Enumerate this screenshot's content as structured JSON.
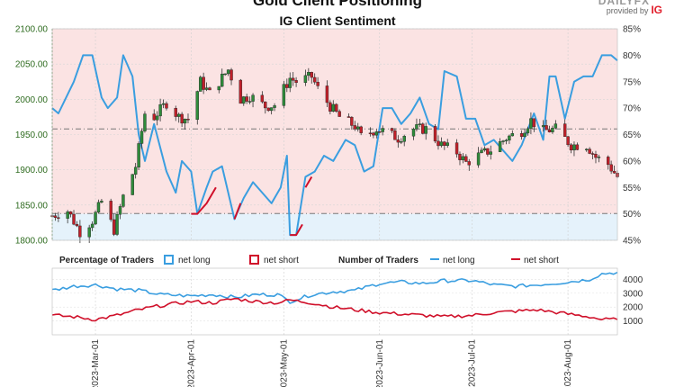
{
  "header": {
    "title": "Gold Client Positioning",
    "subtitle": "IG Client Sentiment",
    "brand_top": "DAILYFX",
    "brand_text": "provided by",
    "brand_logo": "IG"
  },
  "legend": {
    "pct_title": "Percentage of Traders",
    "pct_long": "net long",
    "pct_short": "net short",
    "num_title": "Number of Traders",
    "num_long": "net long",
    "num_short": "net short"
  },
  "colors": {
    "long": "#3a9ee0",
    "short": "#d0102a",
    "bull": "#2e8b3a",
    "bear": "#c0202a",
    "bg_short": "#fbe3e3",
    "bg_long": "#e5f2fb"
  },
  "chart_data": [
    {
      "type": "candlestick",
      "title": "IG Client Sentiment",
      "x_ticks": [
        "2023-Mar-01",
        "2023-Apr-01",
        "2023-May-01",
        "2023-Jun-01",
        "2023-Jul-01",
        "2023-Aug-01"
      ],
      "y_left_ticks": [
        "1800.00",
        "1850.00",
        "1900.00",
        "1950.00",
        "2000.00",
        "2050.00",
        "2100.00"
      ],
      "ylim_price": [
        1800,
        2100
      ],
      "y_right_ticks": [
        "45%",
        "50%",
        "55%",
        "60%",
        "65%",
        "70%",
        "75%",
        "80%",
        "85%"
      ],
      "ylim_pct": [
        45,
        85
      ],
      "ref_lines_price": [
        1838,
        1958
      ],
      "start": "2023-02-15",
      "end": "2023-08-17",
      "price_path": [
        [
          "2023-02-15",
          1835
        ],
        [
          "2023-02-20",
          1842
        ],
        [
          "2023-02-24",
          1812
        ],
        [
          "2023-02-28",
          1828
        ],
        [
          "2023-03-03",
          1855
        ],
        [
          "2023-03-07",
          1815
        ],
        [
          "2023-03-10",
          1862
        ],
        [
          "2023-03-14",
          1905
        ],
        [
          "2023-03-17",
          1980
        ],
        [
          "2023-03-20",
          1975
        ],
        [
          "2023-03-24",
          1995
        ],
        [
          "2023-03-28",
          1975
        ],
        [
          "2023-03-31",
          1972
        ],
        [
          "2023-04-04",
          2025
        ],
        [
          "2023-04-07",
          2008
        ],
        [
          "2023-04-13",
          2042
        ],
        [
          "2023-04-17",
          2000
        ],
        [
          "2023-04-20",
          2005
        ],
        [
          "2023-04-25",
          1990
        ],
        [
          "2023-04-28",
          1992
        ],
        [
          "2023-05-03",
          2030
        ],
        [
          "2023-05-05",
          2025
        ],
        [
          "2023-05-10",
          2032
        ],
        [
          "2023-05-12",
          2015
        ],
        [
          "2023-05-16",
          1990
        ],
        [
          "2023-05-19",
          1975
        ],
        [
          "2023-05-24",
          1962
        ],
        [
          "2023-05-26",
          1947
        ],
        [
          "2023-05-31",
          1958
        ],
        [
          "2023-06-02",
          1955
        ],
        [
          "2023-06-07",
          1945
        ],
        [
          "2023-06-12",
          1958
        ],
        [
          "2023-06-16",
          1958
        ],
        [
          "2023-06-21",
          1935
        ],
        [
          "2023-06-26",
          1925
        ],
        [
          "2023-06-29",
          1910
        ],
        [
          "2023-07-03",
          1920
        ],
        [
          "2023-07-07",
          1928
        ],
        [
          "2023-07-12",
          1945
        ],
        [
          "2023-07-17",
          1955
        ],
        [
          "2023-07-20",
          1970
        ],
        [
          "2023-07-24",
          1955
        ],
        [
          "2023-07-28",
          1958
        ],
        [
          "2023-08-02",
          1935
        ],
        [
          "2023-08-07",
          1935
        ],
        [
          "2023-08-10",
          1918
        ],
        [
          "2023-08-14",
          1908
        ],
        [
          "2023-08-17",
          1890
        ]
      ],
      "series": [
        {
          "name": "net long",
          "values": [
            [
              "2023-02-15",
              70
            ],
            [
              "2023-02-17",
              69
            ],
            [
              "2023-02-22",
              75
            ],
            [
              "2023-02-25",
              80
            ],
            [
              "2023-02-28",
              80
            ],
            [
              "2023-03-03",
              72
            ],
            [
              "2023-03-05",
              70
            ],
            [
              "2023-03-08",
              72
            ],
            [
              "2023-03-10",
              80
            ],
            [
              "2023-03-13",
              76
            ],
            [
              "2023-03-15",
              65
            ],
            [
              "2023-03-17",
              60
            ],
            [
              "2023-03-20",
              67
            ],
            [
              "2023-03-24",
              58
            ],
            [
              "2023-03-27",
              54
            ],
            [
              "2023-03-29",
              60
            ],
            [
              "2023-04-01",
              58
            ],
            [
              "2023-04-03",
              50
            ],
            [
              "2023-04-06",
              55
            ],
            [
              "2023-04-08",
              58
            ],
            [
              "2023-04-11",
              59
            ],
            [
              "2023-04-13",
              54
            ],
            [
              "2023-04-15",
              49
            ],
            [
              "2023-04-18",
              53
            ],
            [
              "2023-04-21",
              56
            ],
            [
              "2023-04-24",
              54
            ],
            [
              "2023-04-27",
              52
            ],
            [
              "2023-04-30",
              55
            ],
            [
              "2023-05-02",
              61
            ],
            [
              "2023-05-03",
              46
            ],
            [
              "2023-05-05",
              46
            ],
            [
              "2023-05-08",
              57
            ],
            [
              "2023-05-11",
              58
            ],
            [
              "2023-05-14",
              61
            ],
            [
              "2023-05-17",
              60
            ],
            [
              "2023-05-21",
              64
            ],
            [
              "2023-05-24",
              63
            ],
            [
              "2023-05-27",
              58
            ],
            [
              "2023-05-30",
              59
            ],
            [
              "2023-06-02",
              70
            ],
            [
              "2023-06-05",
              70
            ],
            [
              "2023-06-08",
              67
            ],
            [
              "2023-06-11",
              69
            ],
            [
              "2023-06-14",
              72
            ],
            [
              "2023-06-17",
              67
            ],
            [
              "2023-06-20",
              66
            ],
            [
              "2023-06-22",
              77
            ],
            [
              "2023-06-26",
              76
            ],
            [
              "2023-06-29",
              68
            ],
            [
              "2023-07-02",
              68
            ],
            [
              "2023-07-05",
              63
            ],
            [
              "2023-07-08",
              64
            ],
            [
              "2023-07-11",
              62
            ],
            [
              "2023-07-14",
              60
            ],
            [
              "2023-07-17",
              63
            ],
            [
              "2023-07-21",
              69
            ],
            [
              "2023-07-24",
              64
            ],
            [
              "2023-07-26",
              76
            ],
            [
              "2023-07-28",
              76
            ],
            [
              "2023-07-31",
              68
            ],
            [
              "2023-08-03",
              75
            ],
            [
              "2023-08-06",
              76
            ],
            [
              "2023-08-09",
              76
            ],
            [
              "2023-08-12",
              80
            ],
            [
              "2023-08-15",
              80
            ],
            [
              "2023-08-17",
              79
            ]
          ]
        },
        {
          "name": "net short",
          "segments": [
            [
              [
                "2023-04-01",
                50
              ],
              [
                "2023-04-03",
                50
              ],
              [
                "2023-04-06",
                52
              ],
              [
                "2023-04-09",
                55
              ]
            ],
            [
              [
                "2023-04-15",
                49
              ],
              [
                "2023-04-17",
                52
              ]
            ],
            [
              [
                "2023-05-03",
                46
              ],
              [
                "2023-05-05",
                46
              ],
              [
                "2023-05-07",
                48
              ]
            ],
            [
              [
                "2023-05-08",
                55
              ],
              [
                "2023-05-10",
                57
              ]
            ]
          ]
        }
      ]
    },
    {
      "type": "line",
      "title": "Number of Traders",
      "x_ticks": [
        "2023-Mar-01",
        "2023-Apr-01",
        "2023-May-01",
        "2023-Jun-01",
        "2023-Jul-01",
        "2023-Aug-01"
      ],
      "y_ticks": [
        "1000",
        "2000",
        "3000",
        "4000"
      ],
      "ylim": [
        0,
        4800
      ],
      "series": [
        {
          "name": "net long",
          "values": [
            [
              "2023-02-15",
              3200
            ],
            [
              "2023-02-22",
              3500
            ],
            [
              "2023-03-01",
              3600
            ],
            [
              "2023-03-08",
              3300
            ],
            [
              "2023-03-15",
              3200
            ],
            [
              "2023-03-22",
              2900
            ],
            [
              "2023-04-01",
              2800
            ],
            [
              "2023-04-08",
              2900
            ],
            [
              "2023-04-15",
              2700
            ],
            [
              "2023-04-22",
              2900
            ],
            [
              "2023-04-29",
              2900
            ],
            [
              "2023-05-03",
              2400
            ],
            [
              "2023-05-10",
              2900
            ],
            [
              "2023-05-17",
              3100
            ],
            [
              "2023-05-24",
              3200
            ],
            [
              "2023-06-01",
              3700
            ],
            [
              "2023-06-08",
              3800
            ],
            [
              "2023-06-15",
              3700
            ],
            [
              "2023-06-22",
              3900
            ],
            [
              "2023-07-01",
              3900
            ],
            [
              "2023-07-08",
              3600
            ],
            [
              "2023-07-15",
              3500
            ],
            [
              "2023-07-22",
              3600
            ],
            [
              "2023-08-01",
              3800
            ],
            [
              "2023-08-08",
              4000
            ],
            [
              "2023-08-12",
              4400
            ],
            [
              "2023-08-17",
              4500
            ]
          ]
        },
        {
          "name": "net short",
          "values": [
            [
              "2023-02-15",
              1400
            ],
            [
              "2023-02-22",
              1300
            ],
            [
              "2023-03-01",
              1100
            ],
            [
              "2023-03-08",
              1400
            ],
            [
              "2023-03-15",
              1800
            ],
            [
              "2023-03-22",
              2100
            ],
            [
              "2023-04-01",
              2400
            ],
            [
              "2023-04-08",
              2300
            ],
            [
              "2023-04-15",
              2600
            ],
            [
              "2023-04-22",
              2400
            ],
            [
              "2023-04-29",
              2300
            ],
            [
              "2023-05-03",
              2500
            ],
            [
              "2023-05-10",
              2300
            ],
            [
              "2023-05-17",
              2000
            ],
            [
              "2023-05-24",
              1800
            ],
            [
              "2023-06-01",
              1600
            ],
            [
              "2023-06-08",
              1500
            ],
            [
              "2023-06-15",
              1400
            ],
            [
              "2023-06-22",
              1300
            ],
            [
              "2023-07-01",
              1400
            ],
            [
              "2023-07-08",
              1600
            ],
            [
              "2023-07-15",
              1700
            ],
            [
              "2023-07-22",
              1800
            ],
            [
              "2023-08-01",
              1500
            ],
            [
              "2023-08-08",
              1300
            ],
            [
              "2023-08-12",
              1100
            ],
            [
              "2023-08-17",
              1100
            ]
          ]
        }
      ]
    }
  ]
}
